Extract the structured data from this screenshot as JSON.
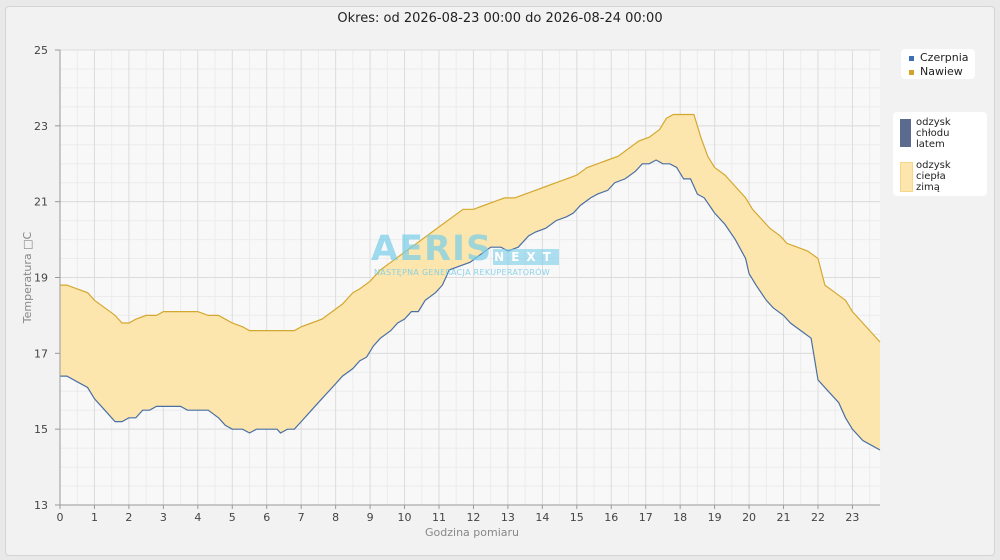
{
  "chart_data": {
    "type": "area",
    "title": "Okres: od 2026-08-23 00:00 do 2026-08-24 00:00",
    "xlabel": "Godzina pomiaru",
    "ylabel": "Temperatura □C",
    "xlim": [
      0,
      23.8
    ],
    "ylim": [
      13,
      25
    ],
    "x_ticks": [
      0,
      1,
      2,
      3,
      4,
      5,
      6,
      7,
      8,
      9,
      10,
      11,
      12,
      13,
      14,
      15,
      16,
      17,
      18,
      19,
      20,
      21,
      22,
      23
    ],
    "y_ticks": [
      13,
      15,
      17,
      19,
      21,
      23,
      25
    ],
    "grid": true,
    "legend_position": "right",
    "series": [
      {
        "name": "Czerpnia",
        "color": "#4a6fa5",
        "points": [
          [
            0,
            16.4
          ],
          [
            0.2,
            16.4
          ],
          [
            0.5,
            16.25
          ],
          [
            0.8,
            16.1
          ],
          [
            1,
            15.8
          ],
          [
            1.3,
            15.5
          ],
          [
            1.6,
            15.2
          ],
          [
            1.8,
            15.2
          ],
          [
            2,
            15.3
          ],
          [
            2.2,
            15.3
          ],
          [
            2.4,
            15.5
          ],
          [
            2.6,
            15.5
          ],
          [
            2.8,
            15.6
          ],
          [
            3.2,
            15.6
          ],
          [
            3.5,
            15.6
          ],
          [
            3.7,
            15.5
          ],
          [
            4,
            15.5
          ],
          [
            4.3,
            15.5
          ],
          [
            4.6,
            15.3
          ],
          [
            4.8,
            15.1
          ],
          [
            5,
            15.0
          ],
          [
            5.3,
            15.0
          ],
          [
            5.5,
            14.9
          ],
          [
            5.7,
            15.0
          ],
          [
            6,
            15.0
          ],
          [
            6.3,
            15.0
          ],
          [
            6.4,
            14.9
          ],
          [
            6.6,
            15.0
          ],
          [
            6.8,
            15.0
          ],
          [
            7,
            15.2
          ],
          [
            7.3,
            15.5
          ],
          [
            7.6,
            15.8
          ],
          [
            7.9,
            16.1
          ],
          [
            8.2,
            16.4
          ],
          [
            8.5,
            16.6
          ],
          [
            8.7,
            16.8
          ],
          [
            8.9,
            16.9
          ],
          [
            9.1,
            17.2
          ],
          [
            9.3,
            17.4
          ],
          [
            9.6,
            17.6
          ],
          [
            9.8,
            17.8
          ],
          [
            10,
            17.9
          ],
          [
            10.2,
            18.1
          ],
          [
            10.4,
            18.1
          ],
          [
            10.6,
            18.4
          ],
          [
            10.9,
            18.6
          ],
          [
            11.1,
            18.8
          ],
          [
            11.3,
            19.2
          ],
          [
            11.6,
            19.3
          ],
          [
            11.9,
            19.4
          ],
          [
            12.2,
            19.6
          ],
          [
            12.5,
            19.8
          ],
          [
            12.8,
            19.8
          ],
          [
            13,
            19.7
          ],
          [
            13.3,
            19.8
          ],
          [
            13.6,
            20.1
          ],
          [
            13.8,
            20.2
          ],
          [
            14.1,
            20.3
          ],
          [
            14.4,
            20.5
          ],
          [
            14.7,
            20.6
          ],
          [
            14.9,
            20.7
          ],
          [
            15.1,
            20.9
          ],
          [
            15.4,
            21.1
          ],
          [
            15.6,
            21.2
          ],
          [
            15.9,
            21.3
          ],
          [
            16.1,
            21.5
          ],
          [
            16.4,
            21.6
          ],
          [
            16.7,
            21.8
          ],
          [
            16.9,
            22.0
          ],
          [
            17.1,
            22.0
          ],
          [
            17.3,
            22.1
          ],
          [
            17.5,
            22.0
          ],
          [
            17.7,
            22.0
          ],
          [
            17.9,
            21.9
          ],
          [
            18.1,
            21.6
          ],
          [
            18.3,
            21.6
          ],
          [
            18.5,
            21.2
          ],
          [
            18.7,
            21.1
          ],
          [
            19,
            20.7
          ],
          [
            19.3,
            20.4
          ],
          [
            19.6,
            20.0
          ],
          [
            19.9,
            19.5
          ],
          [
            20,
            19.1
          ],
          [
            20.2,
            18.8
          ],
          [
            20.5,
            18.4
          ],
          [
            20.7,
            18.2
          ],
          [
            21,
            18.0
          ],
          [
            21.2,
            17.8
          ],
          [
            21.5,
            17.6
          ],
          [
            21.8,
            17.4
          ],
          [
            22,
            16.3
          ],
          [
            22.3,
            16.0
          ],
          [
            22.6,
            15.7
          ],
          [
            22.8,
            15.3
          ],
          [
            23,
            15.0
          ],
          [
            23.3,
            14.7
          ],
          [
            23.6,
            14.55
          ],
          [
            23.8,
            14.45
          ]
        ]
      },
      {
        "name": "Nawiew",
        "color": "#d4a830",
        "points": [
          [
            0,
            18.8
          ],
          [
            0.2,
            18.8
          ],
          [
            0.5,
            18.7
          ],
          [
            0.8,
            18.6
          ],
          [
            1,
            18.4
          ],
          [
            1.3,
            18.2
          ],
          [
            1.6,
            18.0
          ],
          [
            1.8,
            17.8
          ],
          [
            2,
            17.8
          ],
          [
            2.2,
            17.9
          ],
          [
            2.5,
            18.0
          ],
          [
            2.8,
            18.0
          ],
          [
            3,
            18.1
          ],
          [
            3.5,
            18.1
          ],
          [
            4,
            18.1
          ],
          [
            4.3,
            18.0
          ],
          [
            4.6,
            18.0
          ],
          [
            4.8,
            17.9
          ],
          [
            5,
            17.8
          ],
          [
            5.3,
            17.7
          ],
          [
            5.5,
            17.6
          ],
          [
            6,
            17.6
          ],
          [
            6.5,
            17.6
          ],
          [
            6.8,
            17.6
          ],
          [
            7,
            17.7
          ],
          [
            7.3,
            17.8
          ],
          [
            7.6,
            17.9
          ],
          [
            7.9,
            18.1
          ],
          [
            8.2,
            18.3
          ],
          [
            8.5,
            18.6
          ],
          [
            8.7,
            18.7
          ],
          [
            9,
            18.9
          ],
          [
            9.3,
            19.2
          ],
          [
            9.6,
            19.4
          ],
          [
            9.9,
            19.6
          ],
          [
            10.2,
            19.8
          ],
          [
            10.5,
            20.0
          ],
          [
            10.8,
            20.2
          ],
          [
            11.1,
            20.4
          ],
          [
            11.4,
            20.6
          ],
          [
            11.7,
            20.8
          ],
          [
            12,
            20.8
          ],
          [
            12.3,
            20.9
          ],
          [
            12.6,
            21.0
          ],
          [
            12.9,
            21.1
          ],
          [
            13.2,
            21.1
          ],
          [
            13.5,
            21.2
          ],
          [
            13.8,
            21.3
          ],
          [
            14.1,
            21.4
          ],
          [
            14.4,
            21.5
          ],
          [
            14.7,
            21.6
          ],
          [
            15,
            21.7
          ],
          [
            15.3,
            21.9
          ],
          [
            15.6,
            22.0
          ],
          [
            15.9,
            22.1
          ],
          [
            16.2,
            22.2
          ],
          [
            16.5,
            22.4
          ],
          [
            16.8,
            22.6
          ],
          [
            17.1,
            22.7
          ],
          [
            17.4,
            22.9
          ],
          [
            17.6,
            23.2
          ],
          [
            17.8,
            23.3
          ],
          [
            18.1,
            23.3
          ],
          [
            18.4,
            23.3
          ],
          [
            18.6,
            22.7
          ],
          [
            18.8,
            22.2
          ],
          [
            19,
            21.9
          ],
          [
            19.3,
            21.7
          ],
          [
            19.6,
            21.4
          ],
          [
            19.9,
            21.1
          ],
          [
            20.1,
            20.8
          ],
          [
            20.4,
            20.5
          ],
          [
            20.6,
            20.3
          ],
          [
            20.9,
            20.1
          ],
          [
            21.1,
            19.9
          ],
          [
            21.4,
            19.8
          ],
          [
            21.7,
            19.7
          ],
          [
            22,
            19.5
          ],
          [
            22.2,
            18.8
          ],
          [
            22.5,
            18.6
          ],
          [
            22.8,
            18.4
          ],
          [
            23,
            18.1
          ],
          [
            23.3,
            17.8
          ],
          [
            23.6,
            17.5
          ],
          [
            23.8,
            17.3
          ]
        ]
      }
    ],
    "fill_color": "#fde6ad"
  },
  "legend": {
    "items": [
      {
        "label": "Czerpnia",
        "color": "#3f6fb3"
      },
      {
        "label": "Nawiew",
        "color": "#d4a32a"
      }
    ],
    "areas": [
      {
        "label": "odzysk\nchłodu\nlatem",
        "color": "#5b6b8f"
      },
      {
        "label": "odzysk\nciepła\nzimą",
        "color": "#fde6ad"
      }
    ]
  },
  "watermark": {
    "brand": "AERIS",
    "badge": "NEXT",
    "tagline": "NASTĘPNA GENERACJA REKUPERATORÓW"
  }
}
